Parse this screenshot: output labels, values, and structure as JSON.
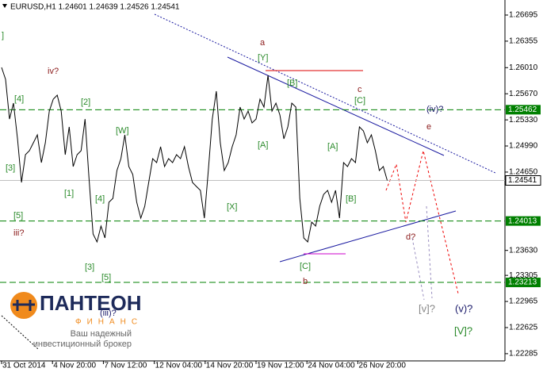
{
  "chart_data": {
    "type": "line",
    "title": "EURUSD,H1  1.24601 1.24639 1.24526 1.24541",
    "color": "#000000",
    "x": [
      0,
      5,
      10,
      15,
      20,
      25,
      30,
      35,
      40,
      45,
      50,
      55,
      60,
      65,
      70,
      75,
      80,
      85,
      90,
      95,
      100,
      105,
      110,
      115,
      120,
      125,
      130,
      135,
      140,
      145,
      150,
      155,
      160,
      165,
      170,
      175,
      180,
      185,
      190,
      195,
      200,
      205,
      210,
      215,
      220,
      225,
      230,
      235,
      240,
      245,
      250,
      255,
      260,
      265,
      270,
      275,
      280,
      285,
      290,
      295,
      300,
      305,
      310,
      315,
      320,
      325,
      330,
      335,
      340,
      345,
      350,
      355,
      360,
      365,
      370,
      375,
      380,
      385,
      390,
      395,
      400,
      405,
      410,
      415,
      420,
      425,
      430,
      435,
      440,
      445,
      450,
      455,
      460,
      465,
      470,
      475,
      480,
      485
    ],
    "values": [
      1.26013,
      1.25858,
      1.25341,
      1.25548,
      1.25083,
      1.24515,
      1.24877,
      1.24928,
      1.25032,
      1.25135,
      1.24773,
      1.25032,
      1.25445,
      1.256,
      1.25651,
      1.25445,
      1.24877,
      1.25238,
      1.24722,
      1.24877,
      1.24928,
      1.25341,
      1.24567,
      1.23844,
      1.2374,
      1.23947,
      1.23792,
      1.24257,
      1.24308,
      1.2467,
      1.24825,
      1.25135,
      1.24722,
      1.24618,
      1.24257,
      1.2405,
      1.24205,
      1.24515,
      1.24825,
      1.24773,
      1.2498,
      1.24722,
      1.24825,
      1.24773,
      1.24877,
      1.24825,
      1.2498,
      1.24722,
      1.24515,
      1.24463,
      1.24412,
      1.2405,
      1.2467,
      1.25341,
      1.25703,
      1.25032,
      1.2467,
      1.24773,
      1.2498,
      1.25135,
      1.25496,
      1.25341,
      1.25445,
      1.2529,
      1.25341,
      1.256,
      1.25496,
      1.2591,
      1.25445,
      1.25548,
      1.25393,
      1.25083,
      1.25238,
      1.25548,
      1.25496,
      1.24308,
      1.23792,
      1.2374,
      1.23999,
      1.23947,
      1.24205,
      1.2436,
      1.24412,
      1.24257,
      1.24412,
      1.2405,
      1.24773,
      1.24722,
      1.24825,
      1.24773,
      1.25238,
      1.25187,
      1.25032,
      1.25135,
      1.24928,
      1.2467,
      1.24722,
      1.24541
    ],
    "xlim": [
      0,
      635
    ],
    "xticks": [
      {
        "value": 0,
        "label": "31 Oct 2014"
      },
      {
        "value": 64,
        "label": "4 Nov 20:00"
      },
      {
        "value": 128,
        "label": "7 Nov 12:00"
      },
      {
        "value": 192,
        "label": "12 Nov 04:00"
      },
      {
        "value": 256,
        "label": "14 Nov 20:00"
      },
      {
        "value": 320,
        "label": "19 Nov 12:00"
      },
      {
        "value": 384,
        "label": "24 Nov 04:00"
      },
      {
        "value": 448,
        "label": "26 Nov 20:00"
      }
    ],
    "ylim": [
      1.22191,
      1.26891
    ],
    "yticks": [
      1.26695,
      1.26355,
      {
        "value": 1.2601,
        "label": "1.26010"
      },
      {
        "value": 1.2567,
        "label": "1.25670"
      },
      {
        "value": 1.2533,
        "label": "1.25330"
      },
      {
        "value": 1.2499,
        "label": "1.24990"
      },
      {
        "value": 1.2465,
        "label": "1.24650"
      },
      {
        "value": 1.2363,
        "label": "1.23630"
      },
      1.23305,
      1.22965,
      1.22625,
      1.22285
    ],
    "levels": [
      1.25462,
      1.24013,
      1.23213
    ],
    "last_price": 1.24541,
    "annotations": [
      "]",
      "iv?",
      "[4]",
      "[2]",
      "[3]",
      "[W]",
      "[1]",
      "[4]",
      "[5]",
      "iii?",
      "[3]",
      "[5]",
      "(iii)?",
      "a",
      "[Y]",
      "[B]",
      "c",
      "[C]",
      "(iv)?",
      "e",
      "[A]",
      "[A]",
      "[X]",
      "[B]",
      "d?",
      "[C]",
      "b",
      "[v]?",
      "(v)?",
      "[V]?"
    ],
    "watermark": {
      "brand": "ПАНТЕОН",
      "sub": "ФИНАНС",
      "line1": "Ваш надежный",
      "line2": "инвестиционный брокер"
    }
  }
}
